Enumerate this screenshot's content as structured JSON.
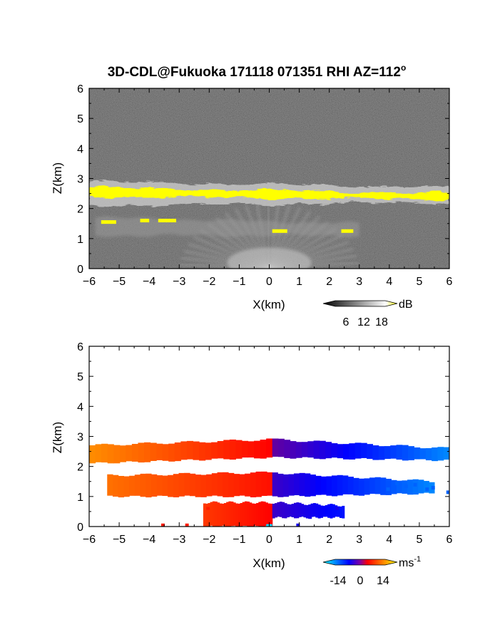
{
  "title": "3D-CDL@Fukuoka 171118 071351 RHI AZ=112",
  "title_degree": "o",
  "chart_data": [
    {
      "type": "heatmap",
      "panel": "reflectivity",
      "xlabel": "X(km)",
      "ylabel": "Z(km)",
      "xlim": [
        -6,
        6
      ],
      "ylim": [
        0,
        6
      ],
      "xticks": [
        "-6",
        "-5",
        "-4",
        "-3",
        "-2",
        "-1",
        "0",
        "1",
        "2",
        "3",
        "4",
        "5",
        "6"
      ],
      "yticks": [
        "0",
        "1",
        "2",
        "3",
        "4",
        "5",
        "6"
      ],
      "colorbar": {
        "unit": "dB",
        "ticks": [
          "6",
          "12",
          "18"
        ],
        "range": [
          0,
          20
        ],
        "colors": [
          "#000000",
          "#ffffff",
          "#ffff00"
        ]
      },
      "background_color": "#262626",
      "layers": [
        {
          "name": "upper cloud layer core",
          "x": [
            -6,
            6
          ],
          "z_bottom": [
            2.4,
            2.3
          ],
          "z_top": [
            2.7,
            2.5
          ],
          "value": 20,
          "color": "#ffff00"
        },
        {
          "name": "upper cloud layer edge",
          "x": [
            -6,
            6
          ],
          "z_bottom": [
            2.1,
            2.2
          ],
          "z_top": [
            2.9,
            2.7
          ],
          "value": 14,
          "color": "#cfcfcf"
        },
        {
          "name": "lower layer patches",
          "x": [
            -5.6,
            2.8
          ],
          "z": [
            1.6,
            1.2
          ],
          "value": 20,
          "color": "#ffff00"
        },
        {
          "name": "near-field echo fan",
          "x": [
            -3,
            3
          ],
          "z": [
            0,
            1.6
          ],
          "value": 12,
          "color": "#bdbdbd"
        }
      ]
    },
    {
      "type": "heatmap",
      "panel": "doppler velocity",
      "xlabel": "X(km)",
      "ylabel": "Z(km)",
      "xlim": [
        -6,
        6
      ],
      "ylim": [
        0,
        6
      ],
      "xticks": [
        "-6",
        "-5",
        "-4",
        "-3",
        "-2",
        "-1",
        "0",
        "1",
        "2",
        "3",
        "4",
        "5",
        "6"
      ],
      "yticks": [
        "0",
        "1",
        "2",
        "3",
        "4",
        "5",
        "6"
      ],
      "colorbar": {
        "unit": "ms",
        "unit_exp": "-1",
        "ticks": [
          "-14",
          "0",
          "14"
        ],
        "range": [
          -20,
          20
        ],
        "colors": [
          "#00ffff",
          "#0000ff",
          "#ff0000",
          "#ffff00"
        ]
      },
      "layers": [
        {
          "name": "upper layer west",
          "x": [
            -6,
            0.1
          ],
          "z_bottom": [
            2.1,
            2.3
          ],
          "z_top": [
            2.7,
            2.9
          ],
          "value": [
            12,
            2
          ]
        },
        {
          "name": "upper layer east",
          "x": [
            0.1,
            6
          ],
          "z_bottom": [
            2.3,
            2.2
          ],
          "z_top": [
            2.9,
            2.6
          ],
          "value": [
            -2,
            -14
          ]
        },
        {
          "name": "middle layer west",
          "x": [
            -5.4,
            0.1
          ],
          "z_bottom": [
            1.0,
            1.0
          ],
          "z_top": [
            1.7,
            1.8
          ],
          "value": [
            10,
            3
          ]
        },
        {
          "name": "middle layer east",
          "x": [
            0.1,
            5.5
          ],
          "z_bottom": [
            1.0,
            1.1
          ],
          "z_top": [
            1.8,
            1.5
          ],
          "value": [
            -4,
            -14
          ]
        },
        {
          "name": "low echoes west",
          "x": [
            -2.2,
            0.1
          ],
          "z_bottom": [
            0.0,
            0.0
          ],
          "z_top": [
            0.8,
            0.8
          ],
          "value": [
            6,
            2
          ]
        },
        {
          "name": "low echoes east",
          "x": [
            0.1,
            2.5
          ],
          "z_bottom": [
            0.3,
            0.3
          ],
          "z_top": [
            0.8,
            0.7
          ],
          "value": [
            -4,
            -8
          ]
        }
      ]
    }
  ]
}
